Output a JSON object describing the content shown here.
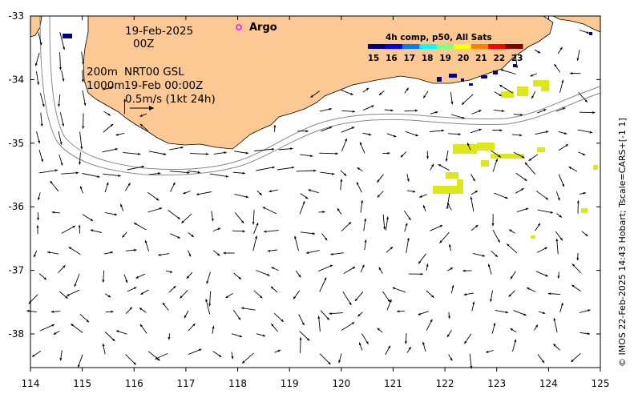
{
  "map": {
    "date_label": "19-Feb-2025",
    "time_label": "00Z",
    "depth_label_1": "200m",
    "depth_label_2": "1000m",
    "product_label": "NRT00 GSL",
    "product_time": "19-Feb 00:00Z",
    "scale_label": "0.5m/s (1kt 24h)",
    "legend_argo": "Argo",
    "credit": "© IMOS 22-Feb-2025 14:43 Hobart; Tscale=CARS+[-1 1]",
    "x_ticks": [
      "114",
      "115",
      "116",
      "117",
      "118",
      "119",
      "120",
      "121",
      "122",
      "123",
      "124",
      "125"
    ],
    "y_ticks": [
      "-33",
      "-34",
      "-35",
      "-36",
      "-37",
      "-38"
    ],
    "colors": {
      "land": "#fcc994",
      "argo": "#ff00ff",
      "sst_patch": "#dce81a",
      "coast_deep": "#000080",
      "contour": "#888888"
    }
  },
  "colorbar": {
    "title": "4h comp, p50, All Sats",
    "ticks": [
      "15",
      "16",
      "17",
      "18",
      "19",
      "20",
      "21",
      "22",
      "23"
    ],
    "colors": [
      "#00007f",
      "#0000ff",
      "#0080ff",
      "#00ffff",
      "#80ff80",
      "#ffff00",
      "#ff8000",
      "#ff0000",
      "#7f0000"
    ]
  }
}
